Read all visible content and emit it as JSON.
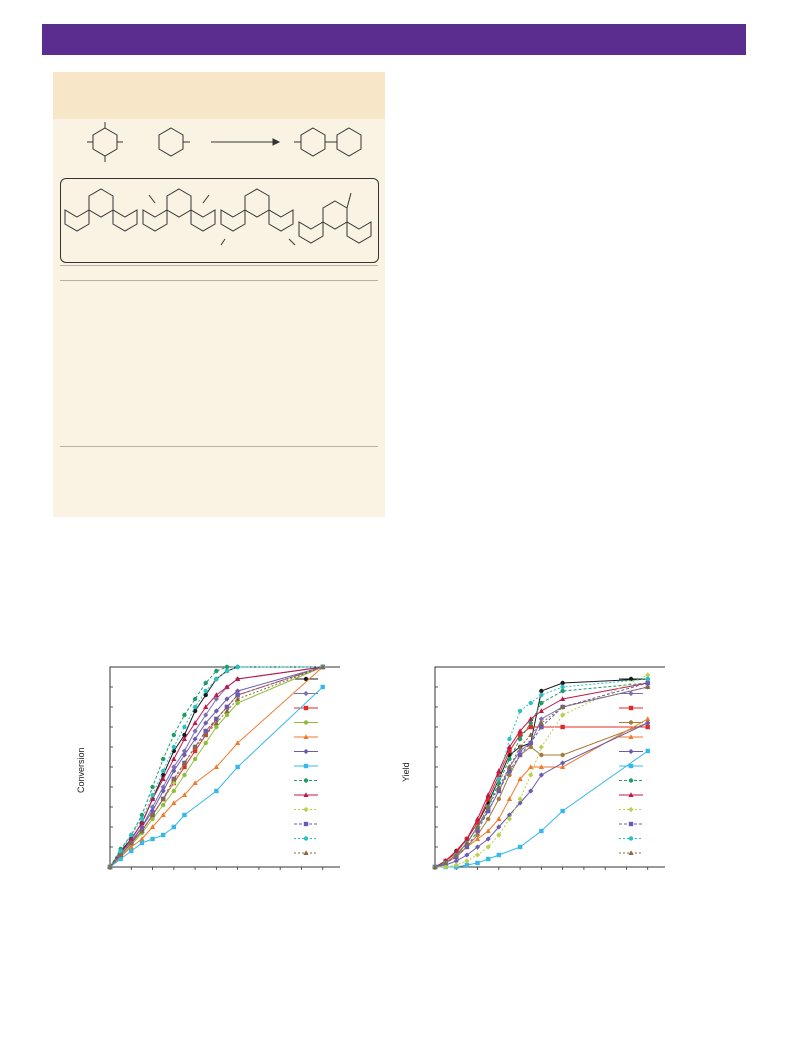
{
  "page": {
    "banner_color": "#5b2d8e",
    "panel_color": "#faf3e3",
    "panel_head_color": "#f7e6c7"
  },
  "chart_data": [
    {
      "type": "line",
      "ylabel": "Conversion",
      "xlim": [
        0,
        11
      ],
      "ylim": [
        0,
        100
      ],
      "series": [
        {
          "color": "#1a1a1a",
          "marker": "circle",
          "x": [
            0,
            0.5,
            1,
            1.5,
            2,
            2.5,
            3,
            3.5,
            4,
            4.5,
            5,
            5.5,
            6,
            10
          ],
          "y": [
            0,
            8,
            14,
            22,
            34,
            46,
            58,
            66,
            78,
            86,
            94,
            98,
            100,
            100
          ]
        },
        {
          "color": "#7a6fb5",
          "marker": "diamond",
          "x": [
            0,
            0.5,
            1,
            1.5,
            2,
            2.5,
            3,
            3.5,
            4,
            4.5,
            5,
            5.5,
            6,
            10
          ],
          "y": [
            0,
            7,
            13,
            20,
            30,
            40,
            50,
            58,
            68,
            76,
            84,
            90,
            94,
            100
          ]
        },
        {
          "color": "#e02a2a",
          "marker": "square",
          "x": [
            0,
            0.5,
            1,
            1.5,
            2,
            2.5,
            3,
            3.5,
            4,
            4.5,
            5,
            5.5,
            6,
            10
          ],
          "y": [
            0,
            6,
            12,
            18,
            26,
            34,
            42,
            50,
            58,
            66,
            74,
            80,
            86,
            100
          ]
        },
        {
          "color": "#8fbf3a",
          "marker": "circle",
          "x": [
            0,
            0.5,
            1,
            1.5,
            2,
            2.5,
            3,
            3.5,
            4,
            4.5,
            5,
            5.5,
            6,
            10
          ],
          "y": [
            0,
            5,
            11,
            17,
            24,
            31,
            38,
            46,
            54,
            62,
            70,
            76,
            82,
            100
          ]
        },
        {
          "color": "#f07a2a",
          "marker": "triangle",
          "x": [
            0,
            0.5,
            1,
            1.5,
            2,
            2.5,
            3,
            3.5,
            4,
            5,
            6,
            10
          ],
          "y": [
            0,
            5,
            10,
            14,
            20,
            26,
            32,
            36,
            42,
            50,
            62,
            100
          ]
        },
        {
          "color": "#6a5bb0",
          "marker": "diamond",
          "x": [
            0,
            0.5,
            1,
            1.5,
            2,
            2.5,
            3,
            3.5,
            4,
            4.5,
            5,
            5.5,
            6,
            10
          ],
          "y": [
            0,
            6,
            12,
            20,
            28,
            38,
            48,
            56,
            64,
            72,
            78,
            84,
            88,
            100
          ]
        },
        {
          "color": "#38b8e8",
          "marker": "square",
          "x": [
            0,
            0.5,
            1,
            1.5,
            2,
            2.5,
            3,
            3.5,
            5,
            6,
            10
          ],
          "y": [
            0,
            4,
            8,
            12,
            14,
            16,
            20,
            26,
            38,
            50,
            90
          ]
        },
        {
          "color": "#1f9a6a",
          "marker": "circle",
          "x": [
            0,
            0.5,
            1,
            1.5,
            2,
            2.5,
            3,
            3.5,
            4,
            4.5,
            5,
            5.5,
            6,
            10
          ],
          "y": [
            0,
            9,
            16,
            26,
            40,
            54,
            66,
            76,
            84,
            92,
            98,
            100,
            100,
            100
          ]
        },
        {
          "color": "#c0184a",
          "marker": "triangle",
          "x": [
            0,
            0.5,
            1,
            1.5,
            2,
            2.5,
            3,
            3.5,
            4,
            4.5,
            5,
            5.5,
            6,
            10
          ],
          "y": [
            0,
            7,
            14,
            22,
            34,
            44,
            54,
            64,
            72,
            80,
            86,
            90,
            94,
            100
          ]
        },
        {
          "color": "#b8d04a",
          "marker": "diamond",
          "x": [
            0,
            0.5,
            1,
            1.5,
            2,
            2.5,
            3,
            3.5,
            4,
            4.5,
            5,
            5.5,
            6,
            10
          ],
          "y": [
            0,
            6,
            12,
            18,
            26,
            34,
            42,
            52,
            60,
            68,
            74,
            80,
            86,
            100
          ]
        },
        {
          "color": "#6a5bb0",
          "marker": "square",
          "x": [
            0,
            0.5,
            1,
            1.5,
            2,
            2.5,
            3,
            3.5,
            4,
            4.5,
            5,
            5.5,
            6,
            10
          ],
          "y": [
            0,
            6,
            12,
            18,
            26,
            34,
            44,
            52,
            60,
            68,
            74,
            80,
            86,
            100
          ]
        },
        {
          "color": "#2ac0c8",
          "marker": "circle",
          "x": [
            0,
            0.5,
            1,
            1.5,
            2,
            2.5,
            3,
            3.5,
            4,
            4.5,
            5,
            5.5,
            6,
            10
          ],
          "y": [
            0,
            8,
            16,
            24,
            36,
            48,
            60,
            70,
            80,
            88,
            94,
            98,
            100,
            100
          ]
        },
        {
          "color": "#8a6a3a",
          "marker": "triangle",
          "x": [
            0,
            0.5,
            1,
            1.5,
            2,
            2.5,
            3,
            3.5,
            4,
            4.5,
            5,
            5.5,
            6,
            10
          ],
          "y": [
            0,
            6,
            12,
            18,
            26,
            34,
            44,
            52,
            60,
            66,
            72,
            78,
            84,
            100
          ]
        }
      ]
    },
    {
      "type": "line",
      "ylabel": "Yield",
      "xlim": [
        0,
        11
      ],
      "ylim": [
        0,
        100
      ],
      "series": [
        {
          "color": "#1a1a1a",
          "marker": "circle",
          "x": [
            0,
            0.5,
            1,
            1.5,
            2,
            2.5,
            3,
            3.5,
            4,
            4.5,
            5,
            6,
            10
          ],
          "y": [
            0,
            3,
            8,
            14,
            22,
            32,
            44,
            56,
            60,
            62,
            88,
            92,
            94
          ]
        },
        {
          "color": "#7a6fb5",
          "marker": "diamond",
          "x": [
            0,
            0.5,
            1,
            1.5,
            2,
            2.5,
            3,
            3.5,
            4,
            4.5,
            5,
            6,
            10
          ],
          "y": [
            0,
            2,
            6,
            12,
            20,
            28,
            38,
            50,
            58,
            62,
            74,
            80,
            90
          ]
        },
        {
          "color": "#e02a2a",
          "marker": "square",
          "x": [
            0,
            0.5,
            1,
            1.5,
            2,
            2.5,
            3,
            3.5,
            4,
            4.5,
            5,
            6,
            10
          ],
          "y": [
            0,
            3,
            7,
            14,
            22,
            34,
            46,
            58,
            66,
            70,
            70,
            70,
            70
          ]
        },
        {
          "color": "#a87a3a",
          "marker": "circle",
          "x": [
            0,
            0.5,
            1,
            1.5,
            2,
            2.5,
            3,
            3.5,
            4,
            4.5,
            5,
            6,
            10
          ],
          "y": [
            0,
            2,
            6,
            10,
            16,
            24,
            34,
            46,
            56,
            60,
            56,
            56,
            72
          ]
        },
        {
          "color": "#f07a2a",
          "marker": "triangle",
          "x": [
            0,
            0.5,
            1,
            1.5,
            2,
            2.5,
            3,
            3.5,
            4,
            4.5,
            5,
            6,
            10
          ],
          "y": [
            0,
            2,
            5,
            10,
            14,
            18,
            24,
            34,
            44,
            50,
            50,
            50,
            74
          ]
        },
        {
          "color": "#6a5bb0",
          "marker": "diamond",
          "x": [
            0,
            0.5,
            1,
            1.5,
            2,
            2.5,
            3,
            3.5,
            4,
            4.5,
            5,
            6,
            10
          ],
          "y": [
            0,
            1,
            3,
            6,
            10,
            14,
            20,
            26,
            32,
            38,
            46,
            52,
            72
          ]
        },
        {
          "color": "#38b8e8",
          "marker": "square",
          "x": [
            0,
            0.5,
            1,
            1.5,
            2,
            2.5,
            3,
            4,
            5,
            6,
            10
          ],
          "y": [
            0,
            0,
            0,
            1,
            2,
            4,
            6,
            10,
            18,
            28,
            58
          ]
        },
        {
          "color": "#1f9a6a",
          "marker": "circle",
          "x": [
            0,
            0.5,
            1,
            1.5,
            2,
            2.5,
            3,
            3.5,
            4,
            4.5,
            5,
            6,
            10
          ],
          "y": [
            0,
            2,
            6,
            12,
            20,
            30,
            42,
            54,
            64,
            72,
            82,
            88,
            92
          ]
        },
        {
          "color": "#c0184a",
          "marker": "triangle",
          "x": [
            0,
            0.5,
            1,
            1.5,
            2,
            2.5,
            3,
            3.5,
            4,
            4.5,
            5,
            6,
            10
          ],
          "y": [
            0,
            3,
            8,
            14,
            24,
            36,
            48,
            60,
            68,
            74,
            78,
            84,
            92
          ]
        },
        {
          "color": "#b8d04a",
          "marker": "diamond",
          "x": [
            0,
            0.5,
            1,
            1.5,
            2,
            2.5,
            3,
            3.5,
            4,
            4.5,
            5,
            6,
            10
          ],
          "y": [
            0,
            0,
            1,
            3,
            6,
            10,
            16,
            24,
            34,
            46,
            60,
            76,
            96
          ]
        },
        {
          "color": "#6a5bb0",
          "marker": "square",
          "x": [
            0,
            0.5,
            1,
            1.5,
            2,
            2.5,
            3,
            3.5,
            4,
            4.5,
            5,
            6,
            10
          ],
          "y": [
            0,
            2,
            5,
            10,
            18,
            28,
            38,
            48,
            56,
            62,
            70,
            80,
            92
          ]
        },
        {
          "color": "#2ac0c8",
          "marker": "circle",
          "x": [
            0,
            0.5,
            1,
            1.5,
            2,
            2.5,
            3,
            3.5,
            4,
            4.5,
            5,
            6,
            10
          ],
          "y": [
            0,
            2,
            6,
            12,
            20,
            30,
            44,
            64,
            78,
            82,
            86,
            90,
            94
          ]
        },
        {
          "color": "#8a6a3a",
          "marker": "triangle",
          "x": [
            0,
            0.5,
            1,
            1.5,
            2,
            2.5,
            3,
            3.5,
            4,
            4.5,
            5,
            6,
            10
          ],
          "y": [
            0,
            2,
            6,
            12,
            20,
            30,
            40,
            50,
            60,
            66,
            72,
            80,
            90
          ]
        }
      ]
    }
  ]
}
